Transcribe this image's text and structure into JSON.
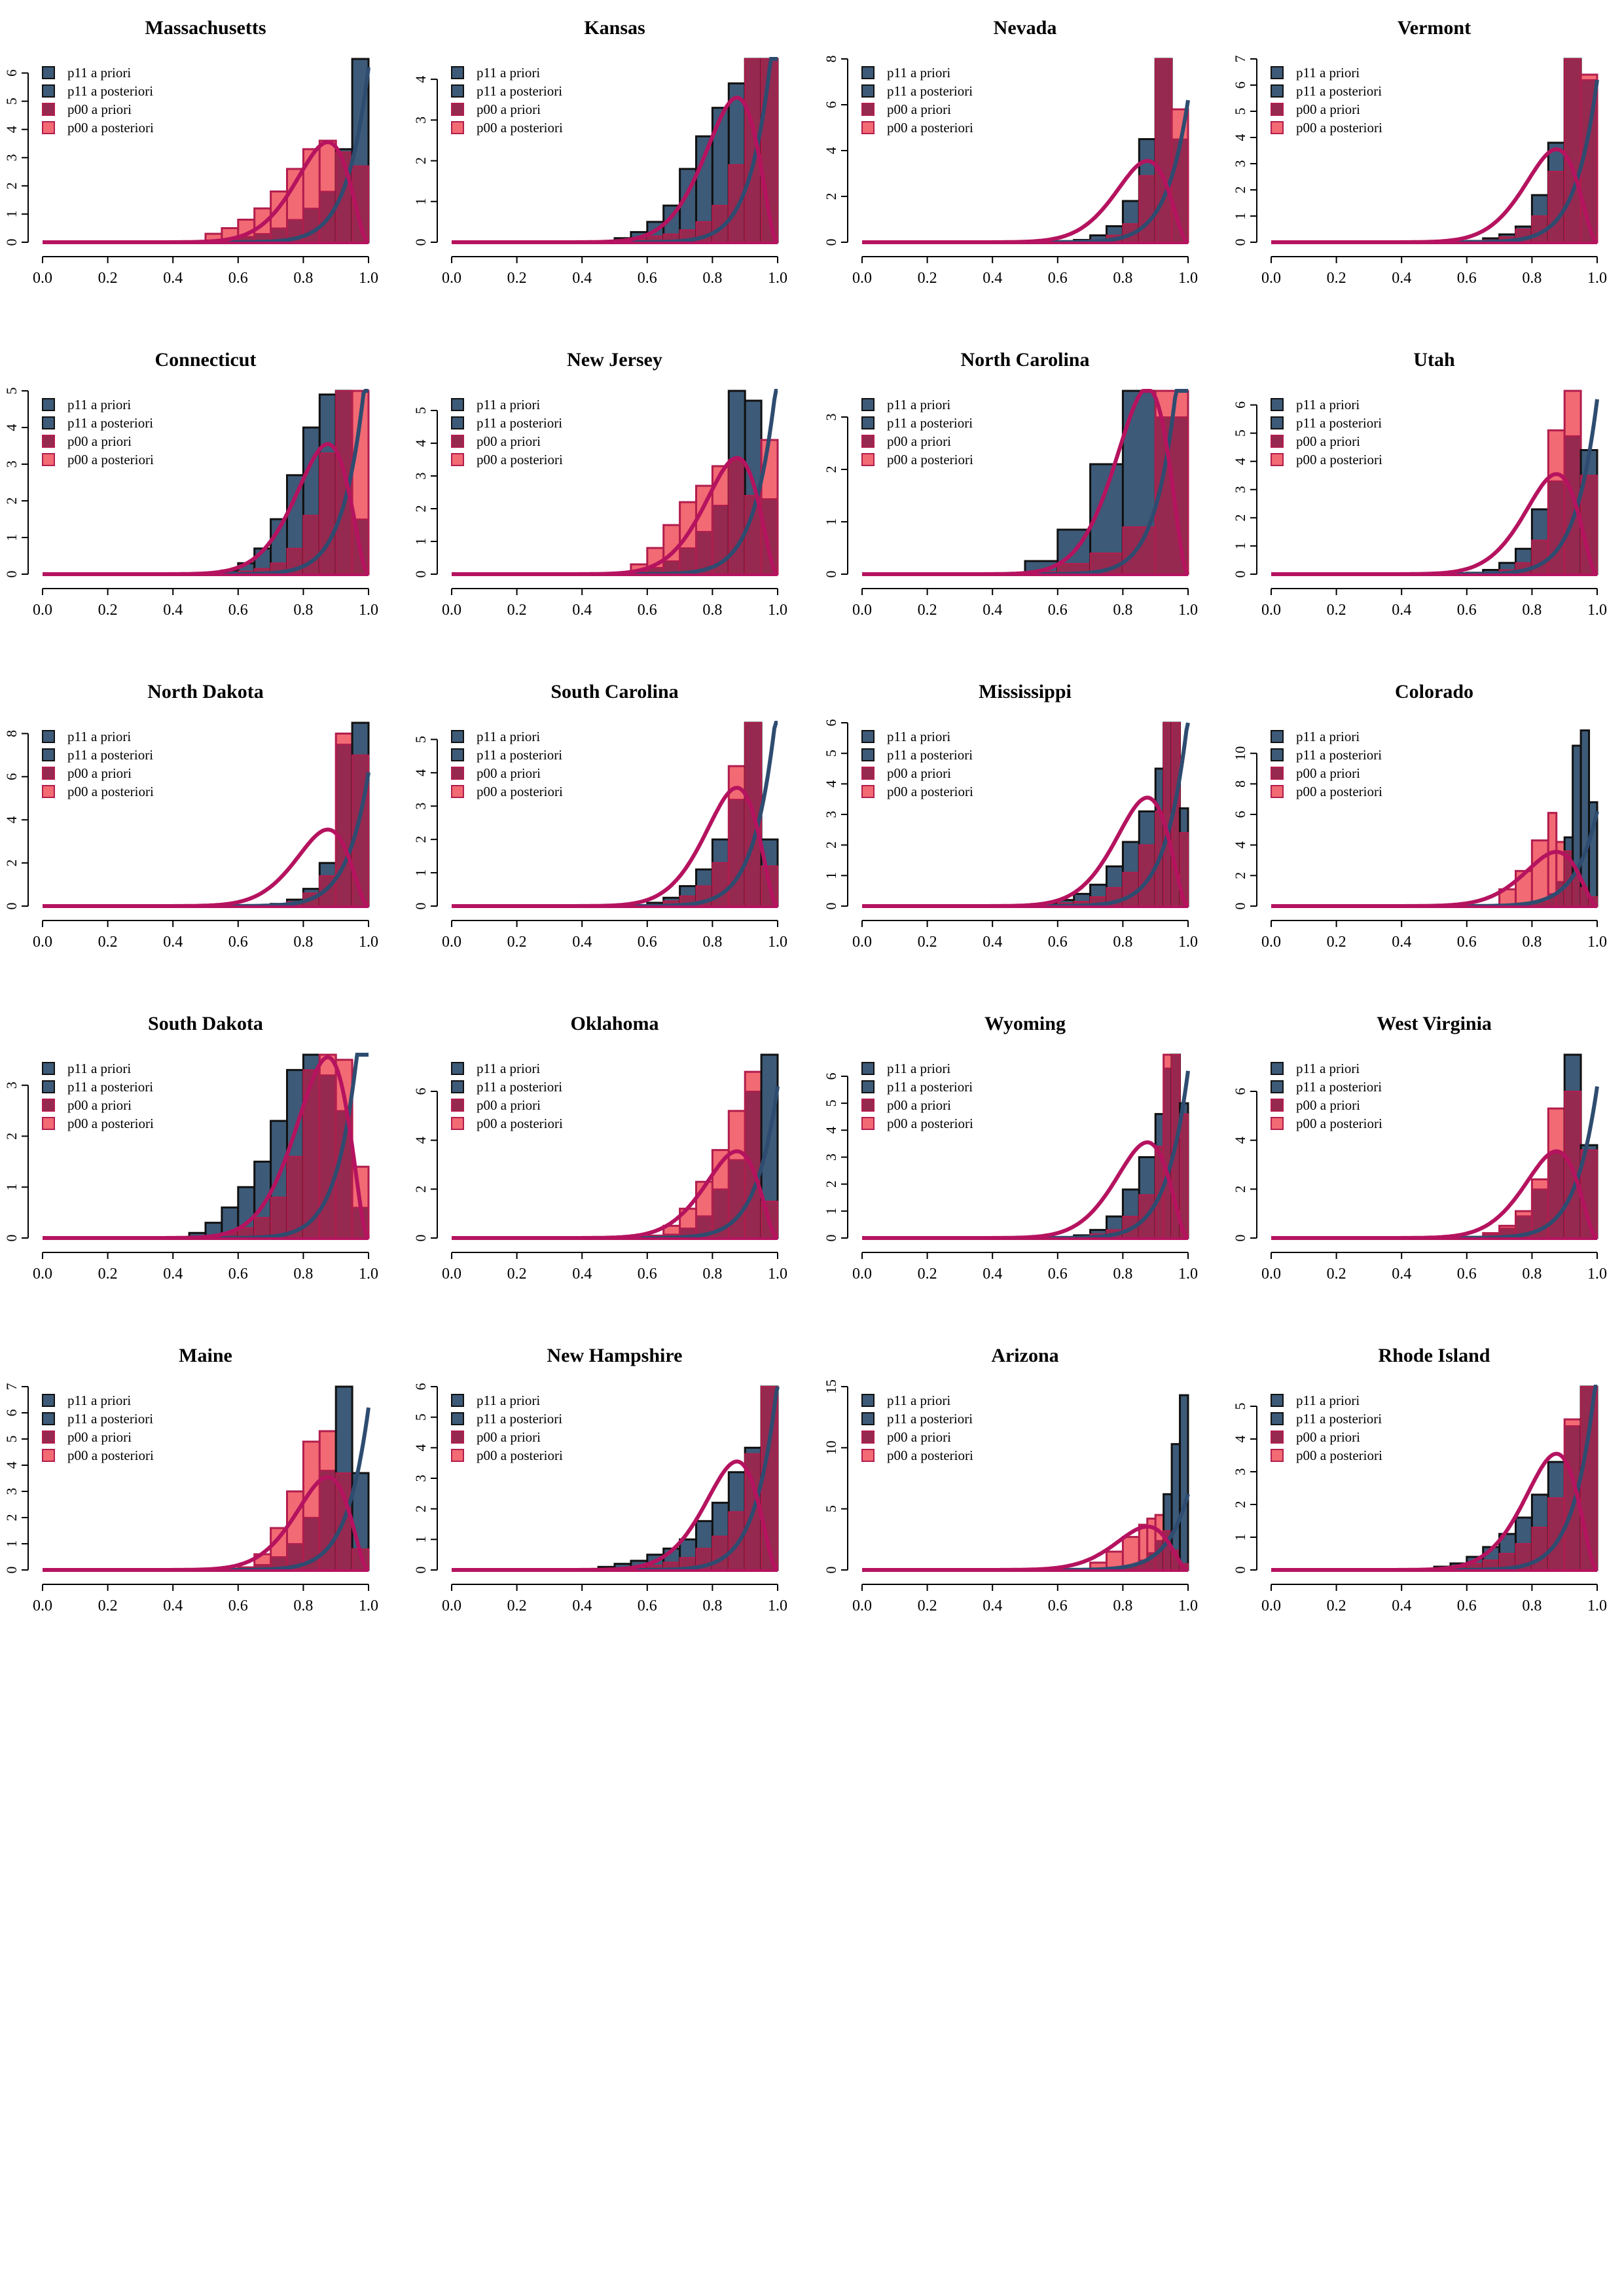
{
  "colors": {
    "p11_fill": "#3d5a78",
    "p11_curve": "#2e4c70",
    "p00_curve": "#b5135f",
    "p00_post_fill": "#f26a73",
    "overlap_fill": "#96294f",
    "p11_edge": "#111111",
    "p00_edge": "#b21d4d"
  },
  "legend": [
    "p11 a priori",
    "p11 a posteriori",
    "p00 a priori",
    "p00 a posteriori"
  ],
  "chart_data": [
    {
      "type": "bar",
      "title": "Massachusetts",
      "xlim": [
        0,
        1
      ],
      "ylim": [
        0,
        6.5
      ],
      "x_ticks": [
        "0.0",
        "0.2",
        "0.4",
        "0.6",
        "0.8",
        "1.0"
      ],
      "y_ticks": [
        0,
        1,
        2,
        3,
        4,
        5,
        6
      ],
      "bins": [
        0.5,
        0.55,
        0.6,
        0.65,
        0.7,
        0.75,
        0.8,
        0.85,
        0.9,
        0.95
      ],
      "p11_values": [
        0.05,
        0.12,
        0.2,
        0.3,
        0.5,
        0.8,
        1.2,
        1.8,
        3.3,
        6.5
      ],
      "p00_values": [
        0.3,
        0.5,
        0.8,
        1.2,
        1.8,
        2.6,
        3.3,
        3.6,
        3.2,
        2.7
      ]
    },
    {
      "type": "bar",
      "title": "Kansas",
      "xlim": [
        0,
        1
      ],
      "ylim": [
        0,
        4.5
      ],
      "x_ticks": [
        "0.0",
        "0.2",
        "0.4",
        "0.6",
        "0.8",
        "1.0"
      ],
      "y_ticks": [
        0,
        1,
        2,
        3,
        4
      ],
      "bins": [
        0.5,
        0.55,
        0.6,
        0.65,
        0.7,
        0.75,
        0.8,
        0.85,
        0.9,
        0.95
      ],
      "p11_values": [
        0.1,
        0.25,
        0.5,
        0.9,
        1.8,
        2.6,
        3.3,
        3.9,
        4.5,
        4.5
      ],
      "p00_values": [
        0.05,
        0.08,
        0.15,
        0.2,
        0.3,
        0.5,
        0.9,
        1.9,
        4.5,
        4.5
      ]
    },
    {
      "type": "bar",
      "title": "Nevada",
      "xlim": [
        0,
        1
      ],
      "ylim": [
        0,
        8
      ],
      "x_ticks": [
        "0.0",
        "0.2",
        "0.4",
        "0.6",
        "0.8",
        "1.0"
      ],
      "y_ticks": [
        0,
        2,
        4,
        6,
        8
      ],
      "bins": [
        0.6,
        0.65,
        0.7,
        0.75,
        0.8,
        0.85,
        0.9,
        0.95
      ],
      "p11_values": [
        0.05,
        0.1,
        0.3,
        0.7,
        1.8,
        4.5,
        8,
        4.5
      ],
      "p00_values": [
        0.02,
        0.05,
        0.1,
        0.3,
        0.8,
        2.9,
        8,
        5.8
      ]
    },
    {
      "type": "bar",
      "title": "Vermont",
      "xlim": [
        0,
        1
      ],
      "ylim": [
        0,
        7
      ],
      "x_ticks": [
        "0.0",
        "0.2",
        "0.4",
        "0.6",
        "0.8",
        "1.0"
      ],
      "y_ticks": [
        0,
        1,
        2,
        3,
        4,
        5,
        6,
        7
      ],
      "bins": [
        0.6,
        0.65,
        0.7,
        0.75,
        0.8,
        0.85,
        0.9,
        0.95
      ],
      "p11_values": [
        0.05,
        0.15,
        0.3,
        0.6,
        1.8,
        3.8,
        7,
        6.2
      ],
      "p00_values": [
        0.02,
        0.08,
        0.2,
        0.5,
        1,
        2.7,
        7,
        6.4
      ]
    },
    {
      "type": "bar",
      "title": "Connecticut",
      "xlim": [
        0,
        1
      ],
      "ylim": [
        0,
        5
      ],
      "x_ticks": [
        "0.0",
        "0.2",
        "0.4",
        "0.6",
        "0.8",
        "1.0"
      ],
      "y_ticks": [
        0,
        1,
        2,
        3,
        4,
        5
      ],
      "bins": [
        0.55,
        0.6,
        0.65,
        0.7,
        0.75,
        0.8,
        0.85,
        0.9,
        0.95
      ],
      "p11_values": [
        0.1,
        0.3,
        0.7,
        1.5,
        2.7,
        4,
        4.9,
        5,
        1.5
      ],
      "p00_values": [
        0.03,
        0.08,
        0.15,
        0.3,
        0.7,
        1.6,
        3.3,
        5,
        5
      ]
    },
    {
      "type": "bar",
      "title": "New Jersey",
      "xlim": [
        0,
        1
      ],
      "ylim": [
        0,
        5.6
      ],
      "x_ticks": [
        "0.0",
        "0.2",
        "0.4",
        "0.6",
        "0.8",
        "1.0"
      ],
      "y_ticks": [
        0,
        1,
        2,
        3,
        4,
        5
      ],
      "bins": [
        0.55,
        0.6,
        0.65,
        0.7,
        0.75,
        0.8,
        0.85,
        0.9,
        0.95
      ],
      "p11_values": [
        0.1,
        0.2,
        0.4,
        0.8,
        1.3,
        2.1,
        5.6,
        5.3,
        2.3
      ],
      "p00_values": [
        0.3,
        0.8,
        1.5,
        2.2,
        2.7,
        3.3,
        3.5,
        2.4,
        4.1
      ]
    },
    {
      "type": "bar",
      "title": "North Carolina",
      "xlim": [
        0,
        1
      ],
      "ylim": [
        0,
        3.5
      ],
      "x_ticks": [
        "0.0",
        "0.2",
        "0.4",
        "0.6",
        "0.8",
        "1.0"
      ],
      "y_ticks": [
        0,
        1,
        2,
        3
      ],
      "bins": [
        0.5,
        0.6,
        0.7,
        0.8,
        0.9
      ],
      "p11_values": [
        0.25,
        0.85,
        2.1,
        3.5,
        3
      ],
      "p00_values": [
        0.05,
        0.2,
        0.4,
        0.9,
        3.5
      ]
    },
    {
      "type": "bar",
      "title": "Utah",
      "xlim": [
        0,
        1
      ],
      "ylim": [
        0,
        6.5
      ],
      "x_ticks": [
        "0.0",
        "0.2",
        "0.4",
        "0.6",
        "0.8",
        "1.0"
      ],
      "y_ticks": [
        0,
        1,
        2,
        3,
        4,
        5,
        6
      ],
      "bins": [
        0.6,
        0.65,
        0.7,
        0.75,
        0.8,
        0.85,
        0.9,
        0.95
      ],
      "p11_values": [
        0.05,
        0.15,
        0.4,
        0.9,
        2.3,
        3.3,
        4.9,
        4.4
      ],
      "p00_values": [
        0.02,
        0.05,
        0.15,
        0.4,
        1.2,
        5.1,
        6.5,
        3.5
      ]
    },
    {
      "type": "bar",
      "title": "North Dakota",
      "xlim": [
        0,
        1
      ],
      "ylim": [
        0,
        8.5
      ],
      "x_ticks": [
        "0.0",
        "0.2",
        "0.4",
        "0.6",
        "0.8",
        "1.0"
      ],
      "y_ticks": [
        0,
        2,
        4,
        6,
        8
      ],
      "bins": [
        0.7,
        0.75,
        0.8,
        0.85,
        0.9,
        0.95
      ],
      "p11_values": [
        0.1,
        0.3,
        0.8,
        2,
        7.5,
        8.5
      ],
      "p00_values": [
        0.05,
        0.2,
        0.6,
        1.4,
        8,
        7
      ]
    },
    {
      "type": "bar",
      "title": "South Carolina",
      "xlim": [
        0,
        1
      ],
      "ylim": [
        0,
        5.5
      ],
      "x_ticks": [
        "0.0",
        "0.2",
        "0.4",
        "0.6",
        "0.8",
        "1.0"
      ],
      "y_ticks": [
        0,
        1,
        2,
        3,
        4,
        5
      ],
      "bins": [
        0.6,
        0.65,
        0.7,
        0.75,
        0.8,
        0.85,
        0.9,
        0.95
      ],
      "p11_values": [
        0.1,
        0.25,
        0.6,
        1.1,
        2,
        3.2,
        5.5,
        2
      ],
      "p00_values": [
        0.05,
        0.15,
        0.3,
        0.6,
        1.3,
        4.2,
        5.5,
        1.2
      ]
    },
    {
      "type": "bar",
      "title": "Mississippi",
      "xlim": [
        0,
        1
      ],
      "ylim": [
        0,
        6
      ],
      "x_ticks": [
        "0.0",
        "0.2",
        "0.4",
        "0.6",
        "0.8",
        "1.0"
      ],
      "y_ticks": [
        0,
        1,
        2,
        3,
        4,
        5,
        6
      ],
      "bins": [
        0.55,
        0.6,
        0.65,
        0.7,
        0.75,
        0.8,
        0.85,
        0.9,
        0.925,
        0.95,
        0.975
      ],
      "p11_values": [
        0.1,
        0.2,
        0.4,
        0.7,
        1.3,
        2.1,
        3.1,
        4.5,
        6,
        6,
        3.2
      ],
      "p00_values": [
        0.05,
        0.1,
        0.15,
        0.3,
        0.6,
        1.1,
        2,
        3.1,
        6,
        6,
        2.4
      ]
    },
    {
      "type": "bar",
      "title": "Colorado",
      "xlim": [
        0,
        1
      ],
      "ylim": [
        0,
        12
      ],
      "x_ticks": [
        "0.0",
        "0.2",
        "0.4",
        "0.6",
        "0.8",
        "1.0"
      ],
      "y_ticks": [
        0,
        2,
        4,
        6,
        8,
        10
      ],
      "bins": [
        0.7,
        0.75,
        0.8,
        0.85,
        0.875,
        0.9,
        0.925,
        0.95,
        0.975
      ],
      "p11_values": [
        0.05,
        0.1,
        0.3,
        0.8,
        1.6,
        4.5,
        10.5,
        11.5,
        6.8
      ],
      "p00_values": [
        1.1,
        2.3,
        4.3,
        6.1,
        4.2,
        3.6,
        2,
        1.2,
        0.6
      ]
    },
    {
      "type": "bar",
      "title": "South Dakota",
      "xlim": [
        0,
        1
      ],
      "ylim": [
        0,
        3.6
      ],
      "x_ticks": [
        "0.0",
        "0.2",
        "0.4",
        "0.6",
        "0.8",
        "1.0"
      ],
      "y_ticks": [
        0,
        1,
        2,
        3
      ],
      "bins": [
        0.45,
        0.5,
        0.55,
        0.6,
        0.65,
        0.7,
        0.75,
        0.8,
        0.85,
        0.9,
        0.95
      ],
      "p11_values": [
        0.1,
        0.3,
        0.6,
        1,
        1.5,
        2.3,
        3.3,
        3.6,
        3.2,
        2.5,
        0.6
      ],
      "p00_values": [
        0.02,
        0.05,
        0.1,
        0.2,
        0.4,
        0.8,
        1.6,
        3.3,
        3.6,
        3.5,
        1.4
      ]
    },
    {
      "type": "bar",
      "title": "Oklahoma",
      "xlim": [
        0,
        1
      ],
      "ylim": [
        0,
        7.5
      ],
      "x_ticks": [
        "0.0",
        "0.2",
        "0.4",
        "0.6",
        "0.8",
        "1.0"
      ],
      "y_ticks": [
        0,
        2,
        4,
        6
      ],
      "bins": [
        0.6,
        0.65,
        0.7,
        0.75,
        0.8,
        0.85,
        0.9,
        0.95
      ],
      "p11_values": [
        0.05,
        0.15,
        0.4,
        0.9,
        2,
        3.2,
        6,
        7.5
      ],
      "p00_values": [
        0.1,
        0.5,
        1.2,
        2.3,
        3.6,
        5.2,
        6.8,
        1.5
      ]
    },
    {
      "type": "bar",
      "title": "Wyoming",
      "xlim": [
        0,
        1
      ],
      "ylim": [
        0,
        6.8
      ],
      "x_ticks": [
        "0.0",
        "0.2",
        "0.4",
        "0.6",
        "0.8",
        "1.0"
      ],
      "y_ticks": [
        0,
        1,
        2,
        3,
        4,
        5,
        6
      ],
      "bins": [
        0.65,
        0.7,
        0.75,
        0.8,
        0.85,
        0.9,
        0.925,
        0.95,
        0.975
      ],
      "p11_values": [
        0.1,
        0.3,
        0.8,
        1.8,
        3,
        4.6,
        6.3,
        6.8,
        5
      ],
      "p00_values": [
        0.05,
        0.15,
        0.3,
        0.8,
        1.6,
        3.4,
        6.8,
        6.8,
        4.6
      ]
    },
    {
      "type": "bar",
      "title": "West Virginia",
      "xlim": [
        0,
        1
      ],
      "ylim": [
        0,
        7.5
      ],
      "x_ticks": [
        "0.0",
        "0.2",
        "0.4",
        "0.6",
        "0.8",
        "1.0"
      ],
      "y_ticks": [
        0,
        2,
        4,
        6
      ],
      "bins": [
        0.6,
        0.65,
        0.7,
        0.75,
        0.8,
        0.85,
        0.9,
        0.95
      ],
      "p11_values": [
        0.05,
        0.15,
        0.4,
        0.9,
        2,
        3.5,
        7.5,
        3.8
      ],
      "p00_values": [
        0.05,
        0.2,
        0.5,
        1.1,
        2.4,
        5.3,
        6,
        3.6
      ]
    },
    {
      "type": "bar",
      "title": "Maine",
      "xlim": [
        0,
        1
      ],
      "ylim": [
        0,
        7
      ],
      "x_ticks": [
        "0.0",
        "0.2",
        "0.4",
        "0.6",
        "0.8",
        "1.0"
      ],
      "y_ticks": [
        0,
        1,
        2,
        3,
        4,
        5,
        6,
        7
      ],
      "bins": [
        0.6,
        0.65,
        0.7,
        0.75,
        0.8,
        0.85,
        0.9,
        0.95
      ],
      "p11_values": [
        0.05,
        0.2,
        0.5,
        1,
        2,
        3.8,
        7,
        3.7
      ],
      "p00_values": [
        0.1,
        0.6,
        1.6,
        3,
        4.9,
        5.3,
        3.7,
        0.8
      ]
    },
    {
      "type": "bar",
      "title": "New Hampshire",
      "xlim": [
        0,
        1
      ],
      "ylim": [
        0,
        6
      ],
      "x_ticks": [
        "0.0",
        "0.2",
        "0.4",
        "0.6",
        "0.8",
        "1.0"
      ],
      "y_ticks": [
        0,
        1,
        2,
        3,
        4,
        5,
        6
      ],
      "bins": [
        0.45,
        0.5,
        0.55,
        0.6,
        0.65,
        0.7,
        0.75,
        0.8,
        0.85,
        0.9,
        0.95
      ],
      "p11_values": [
        0.1,
        0.2,
        0.3,
        0.5,
        0.7,
        1,
        1.6,
        2.2,
        3.2,
        4,
        6
      ],
      "p00_values": [
        0.02,
        0.05,
        0.08,
        0.15,
        0.25,
        0.4,
        0.7,
        1.1,
        1.9,
        3.8,
        6
      ]
    },
    {
      "type": "bar",
      "title": "Arizona",
      "xlim": [
        0,
        1
      ],
      "ylim": [
        0,
        15
      ],
      "x_ticks": [
        "0.0",
        "0.2",
        "0.4",
        "0.6",
        "0.8",
        "1.0"
      ],
      "y_ticks": [
        0,
        5,
        10,
        15
      ],
      "bins": [
        0.7,
        0.75,
        0.8,
        0.85,
        0.875,
        0.9,
        0.925,
        0.95,
        0.975
      ],
      "p11_values": [
        0.05,
        0.1,
        0.3,
        0.8,
        1.4,
        2.4,
        6.2,
        10.3,
        14.3
      ],
      "p00_values": [
        0.6,
        1.5,
        2.7,
        3.7,
        4.2,
        4.5,
        3.2,
        1.6,
        0.5
      ]
    },
    {
      "type": "bar",
      "title": "Rhode Island",
      "xlim": [
        0,
        1
      ],
      "ylim": [
        0,
        5.6
      ],
      "x_ticks": [
        "0.0",
        "0.2",
        "0.4",
        "0.6",
        "0.8",
        "1.0"
      ],
      "y_ticks": [
        0,
        1,
        2,
        3,
        4,
        5
      ],
      "bins": [
        0.5,
        0.55,
        0.6,
        0.65,
        0.7,
        0.75,
        0.8,
        0.85,
        0.9,
        0.95
      ],
      "p11_values": [
        0.1,
        0.2,
        0.4,
        0.7,
        1.1,
        1.6,
        2.3,
        3.3,
        4.4,
        5.6
      ],
      "p00_values": [
        0.05,
        0.1,
        0.2,
        0.3,
        0.5,
        0.8,
        1.3,
        2.2,
        4.6,
        5.6
      ]
    }
  ]
}
